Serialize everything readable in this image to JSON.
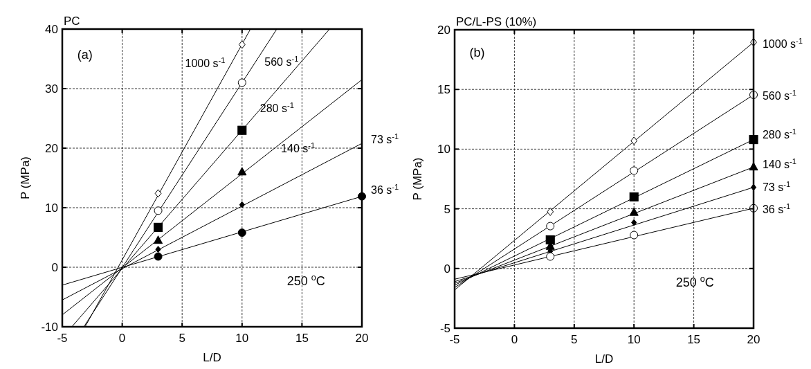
{
  "chart_data": [
    {
      "type": "scatter",
      "title": "PC",
      "xlabel": "L/D",
      "ylabel": "P (MPa)",
      "xlim": [
        -5,
        20
      ],
      "ylim": [
        -10,
        40
      ],
      "xticks": [
        -5,
        0,
        5,
        10,
        15,
        20
      ],
      "yticks": [
        -10,
        0,
        10,
        20,
        30,
        40
      ],
      "grid": true,
      "legend": "right",
      "annotations": [
        "(a)",
        "250 $^{o}$C"
      ],
      "series": [
        {
          "color": "#ffffff",
          "marker": "diamond",
          "x": [
            3,
            10
          ],
          "values": [
            12.4,
            37.4
          ]
        },
        {
          "color": "#ffffff",
          "marker": "circle",
          "x": [
            3,
            10
          ],
          "values": [
            9.5,
            31.0
          ]
        },
        {
          "color": "#000000",
          "marker": "square",
          "x": [
            3,
            10
          ],
          "values": [
            6.7,
            23.0
          ]
        },
        {
          "color": "#000000",
          "marker": "triangle",
          "x": [
            3,
            10
          ],
          "values": [
            4.5,
            16.0
          ]
        },
        {
          "color": "#000000",
          "marker": "diamond",
          "x": [
            3,
            10
          ],
          "values": [
            3.0,
            10.5
          ]
        },
        {
          "color": "#000000",
          "marker": "circle",
          "x": [
            3,
            10,
            20
          ],
          "values": [
            1.8,
            5.8,
            11.9
          ]
        },
        {
          "name": "1000 s$^{-1}$",
          "type": "line",
          "color": "#000000",
          "x": [
            -3.1,
            10.7
          ],
          "values": [
            -10,
            40
          ]
        },
        {
          "name": "560 s$^{-1}$",
          "type": "line",
          "color": "#000000",
          "x": [
            -3.2,
            12.9
          ],
          "values": [
            -10,
            40
          ]
        },
        {
          "name": "280 s$^{-1}$",
          "type": "line",
          "color": "#000000",
          "x": [
            -4.2,
            17.3
          ],
          "values": [
            -10,
            40
          ]
        },
        {
          "name": "140 s$^{-1}$",
          "type": "line",
          "color": "#000000",
          "x": [
            -5,
            20
          ],
          "values": [
            -8.0,
            31.5
          ]
        },
        {
          "name": "73 s$^{-1}$",
          "type": "line",
          "color": "#000000",
          "x": [
            -5,
            20
          ],
          "values": [
            -5.5,
            20.8
          ]
        },
        {
          "name": "36 s$^{-1}$",
          "type": "line",
          "color": "#000000",
          "x": [
            -5,
            20
          ],
          "values": [
            -3.0,
            11.9
          ]
        }
      ]
    },
    {
      "type": "scatter",
      "title": "PC/L-PS (10%)",
      "xlabel": "L/D",
      "ylabel": "P (MPa)",
      "xlim": [
        -5,
        20
      ],
      "ylim": [
        -5,
        20
      ],
      "xticks": [
        -5,
        0,
        5,
        10,
        15,
        20
      ],
      "yticks": [
        -5,
        0,
        5,
        10,
        15,
        20
      ],
      "grid": true,
      "legend": "right",
      "annotations": [
        "(b)",
        "250 $^{o}$C"
      ],
      "series": [
        {
          "color": "#ffffff",
          "marker": "diamond",
          "x": [
            3,
            10,
            20
          ],
          "values": [
            4.75,
            10.7,
            18.95
          ]
        },
        {
          "color": "#ffffff",
          "marker": "circle",
          "x": [
            3,
            10,
            20
          ],
          "values": [
            3.55,
            8.2,
            14.55
          ]
        },
        {
          "color": "#000000",
          "marker": "square",
          "x": [
            3,
            10,
            20
          ],
          "values": [
            2.4,
            6.0,
            10.8
          ]
        },
        {
          "color": "#000000",
          "marker": "triangle",
          "x": [
            3,
            10,
            20
          ],
          "values": [
            1.85,
            4.7,
            8.5
          ]
        },
        {
          "color": "#000000",
          "marker": "diamond",
          "x": [
            3,
            10,
            20
          ],
          "values": [
            1.45,
            3.85,
            6.8
          ]
        },
        {
          "color": "#ffffff",
          "marker": "circle",
          "x": [
            3,
            10,
            20
          ],
          "values": [
            1.0,
            2.8,
            5.05
          ]
        },
        {
          "name": "1000 s$^{-1}$",
          "type": "line",
          "color": "#000000",
          "x": [
            -5,
            20
          ],
          "values": [
            -1.8,
            18.95
          ]
        },
        {
          "name": "560 s$^{-1}$",
          "type": "line",
          "color": "#000000",
          "x": [
            -5,
            20
          ],
          "values": [
            -1.6,
            14.55
          ]
        },
        {
          "name": "280 s$^{-1}$",
          "type": "line",
          "color": "#000000",
          "x": [
            -5,
            20
          ],
          "values": [
            -1.4,
            10.8
          ]
        },
        {
          "name": "140 s$^{-1}$",
          "type": "line",
          "color": "#000000",
          "x": [
            -5,
            20
          ],
          "values": [
            -1.25,
            8.5
          ]
        },
        {
          "name": "73 s$^{-1}$",
          "type": "line",
          "color": "#000000",
          "x": [
            -5,
            20
          ],
          "values": [
            -1.1,
            6.8
          ]
        },
        {
          "name": "36 s$^{-1}$",
          "type": "line",
          "color": "#000000",
          "x": [
            -5,
            20
          ],
          "values": [
            -0.9,
            5.05
          ]
        }
      ]
    }
  ]
}
